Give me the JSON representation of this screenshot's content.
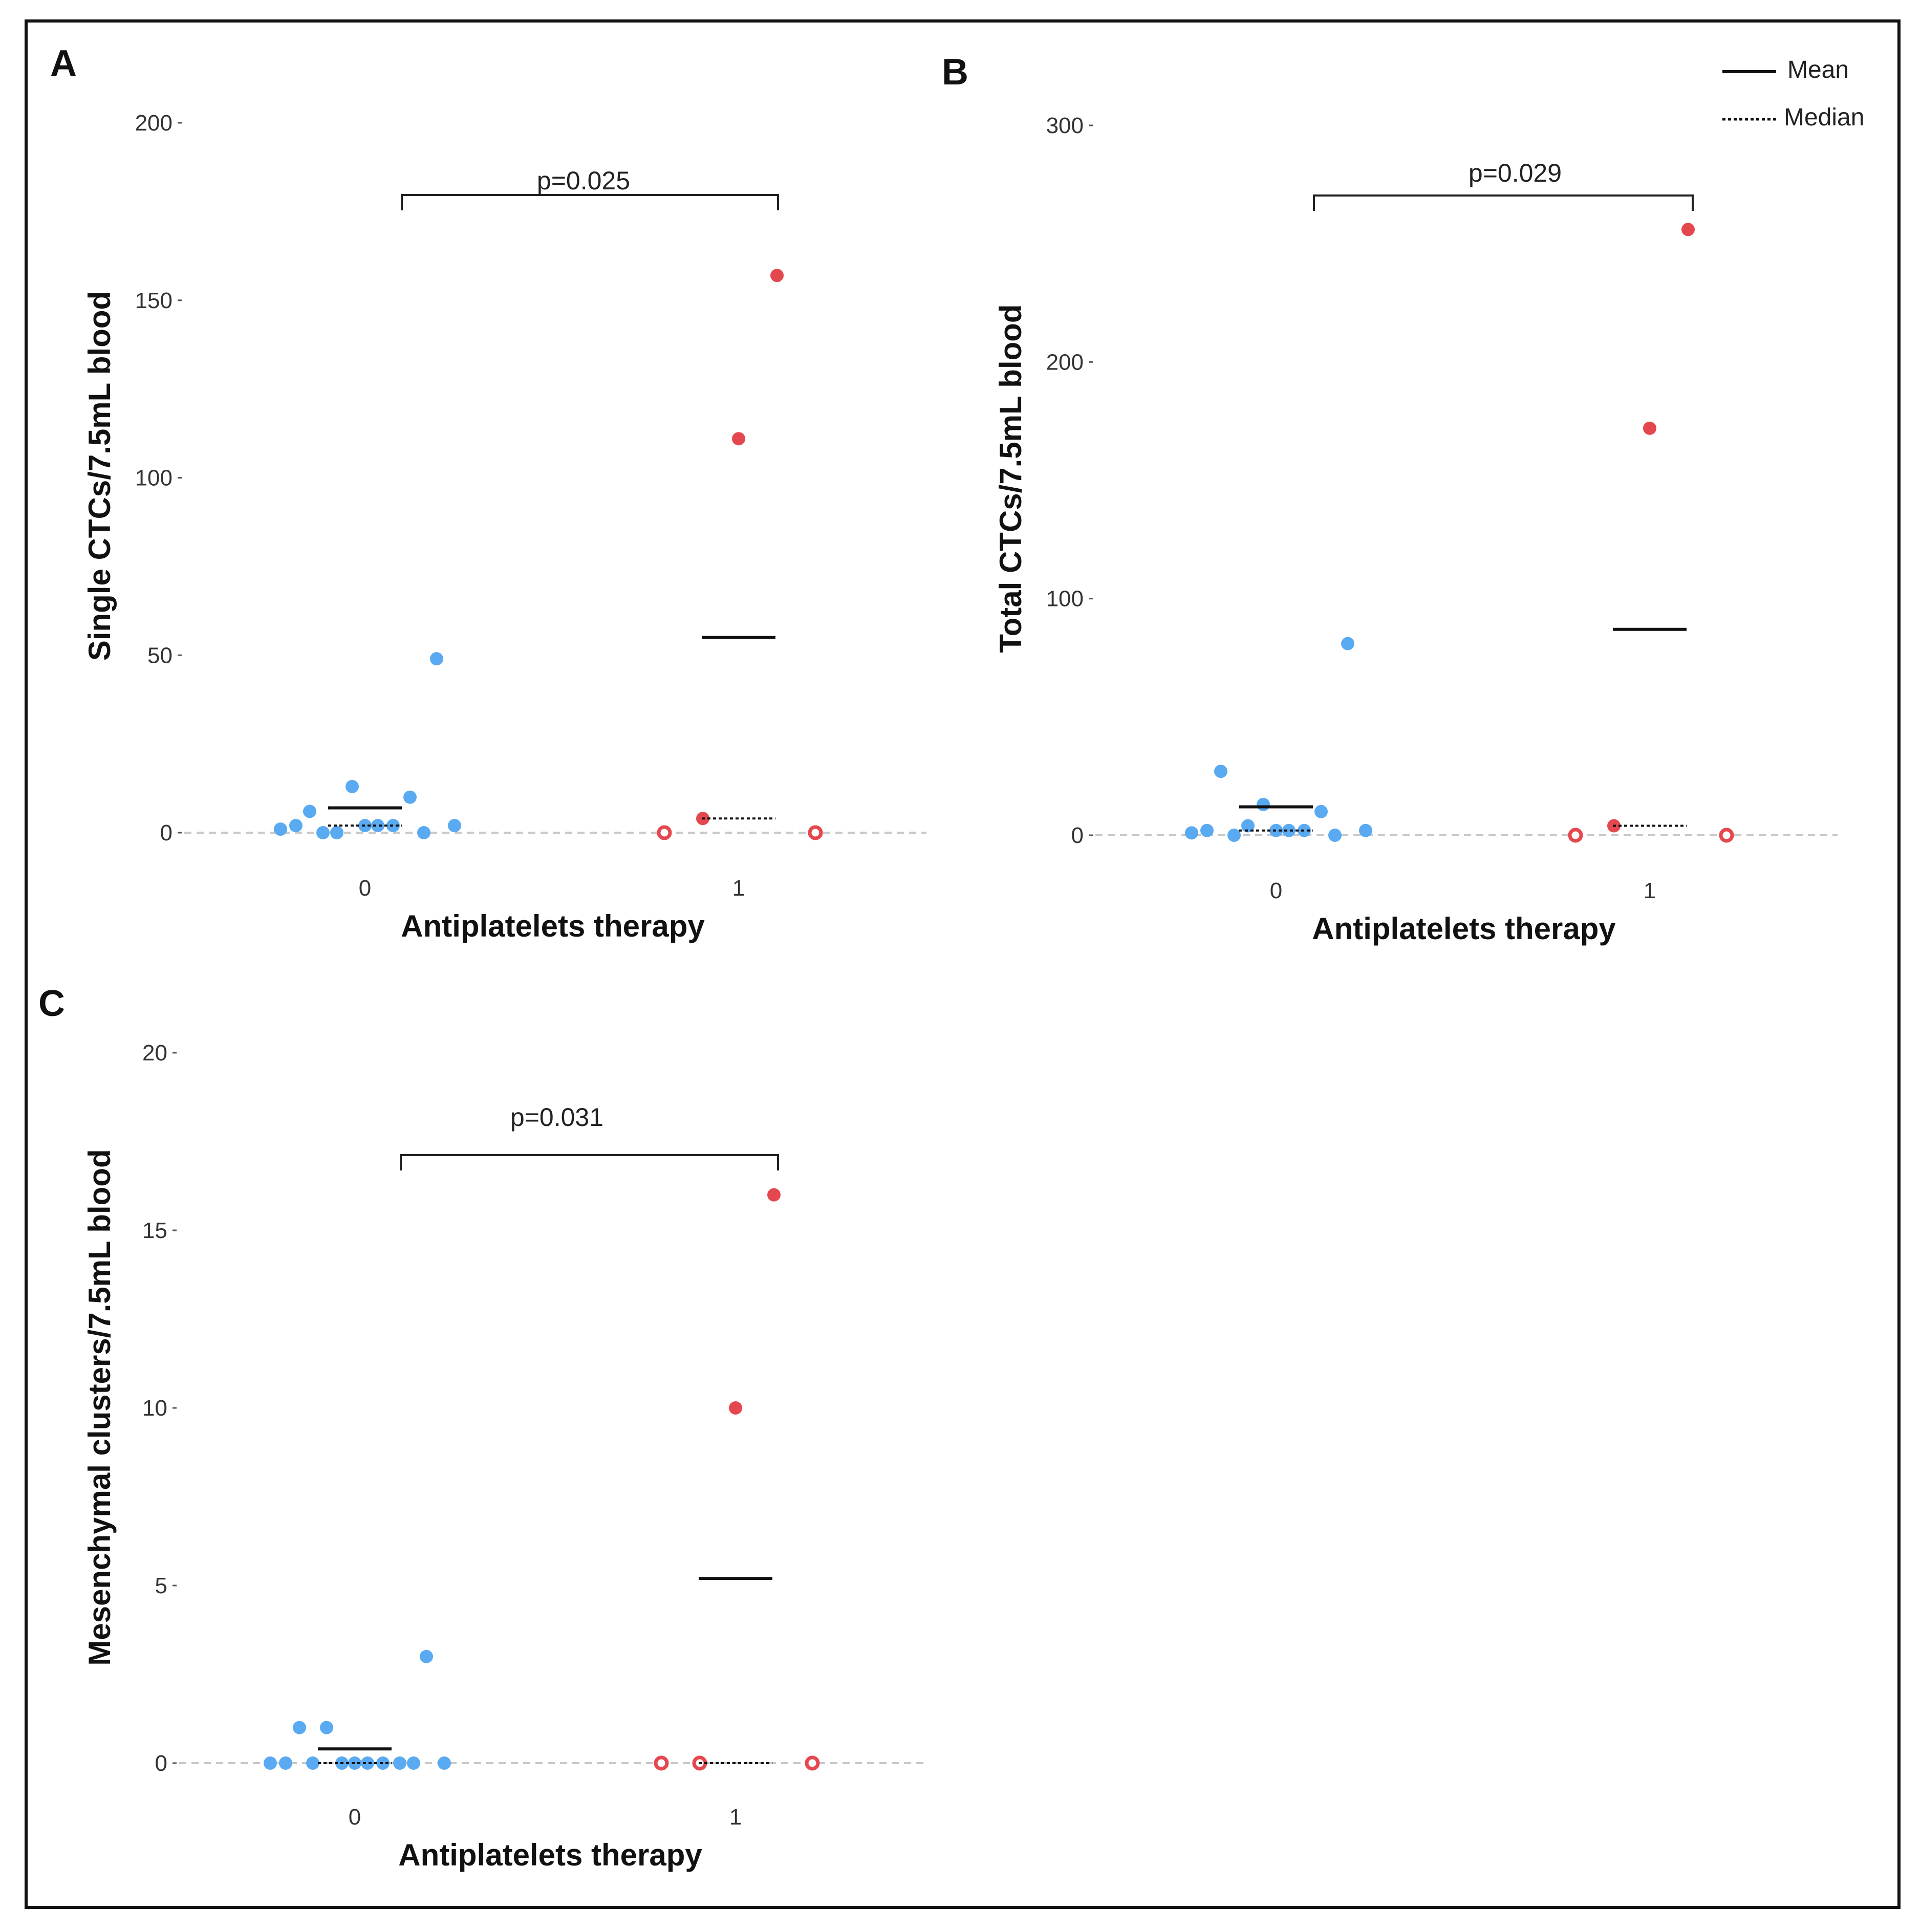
{
  "legend": {
    "mean_label": "Mean",
    "median_label": "Median"
  },
  "colors": {
    "group0": "#5AAAF2",
    "group1": "#E5474E",
    "zero_line": "#C8C8C8",
    "stat_line": "#111111"
  },
  "chart_data": [
    {
      "panel": "A",
      "type": "scatter",
      "xlabel": "Antiplatelets therapy",
      "ylabel": "Single CTCs/7.5mL blood",
      "categories": [
        "0",
        "1"
      ],
      "ylim": [
        0,
        200
      ],
      "yticks": [
        0,
        50,
        100,
        150,
        200
      ],
      "pvalue": "p=0.025",
      "series": [
        {
          "group": "0",
          "values": [
            1,
            2,
            6,
            0,
            0,
            13,
            2,
            2,
            2,
            10,
            0,
            49,
            2
          ],
          "mean": 7,
          "median": 2
        },
        {
          "group": "1",
          "values": [
            0,
            4,
            111,
            157,
            0
          ],
          "mean": 55,
          "median": 4
        }
      ]
    },
    {
      "panel": "B",
      "type": "scatter",
      "xlabel": "Antiplatelets therapy",
      "ylabel": "Total CTCs/7.5mL blood",
      "categories": [
        "0",
        "1"
      ],
      "ylim": [
        0,
        300
      ],
      "yticks": [
        0,
        100,
        200,
        300
      ],
      "pvalue": "p=0.029",
      "series": [
        {
          "group": "0",
          "values": [
            1,
            2,
            27,
            0,
            4,
            13,
            2,
            2,
            2,
            10,
            0,
            81,
            2
          ],
          "mean": 12,
          "median": 2
        },
        {
          "group": "1",
          "values": [
            0,
            4,
            172,
            256,
            0
          ],
          "mean": 87,
          "median": 4
        }
      ]
    },
    {
      "panel": "C",
      "type": "scatter",
      "xlabel": "Antiplatelets therapy",
      "ylabel": "Mesenchymal clusters/7.5mL blood",
      "categories": [
        "0",
        "1"
      ],
      "ylim": [
        0,
        20
      ],
      "yticks": [
        0,
        5,
        10,
        15,
        20
      ],
      "pvalue": "p=0.031",
      "series": [
        {
          "group": "0",
          "values": [
            0,
            0,
            1,
            0,
            1,
            0,
            0,
            0,
            0,
            0,
            0,
            3,
            0
          ],
          "mean": 0.4,
          "median": 0
        },
        {
          "group": "1",
          "values": [
            0,
            0,
            10,
            16,
            0
          ],
          "mean": 5.2,
          "median": 0
        }
      ]
    }
  ]
}
